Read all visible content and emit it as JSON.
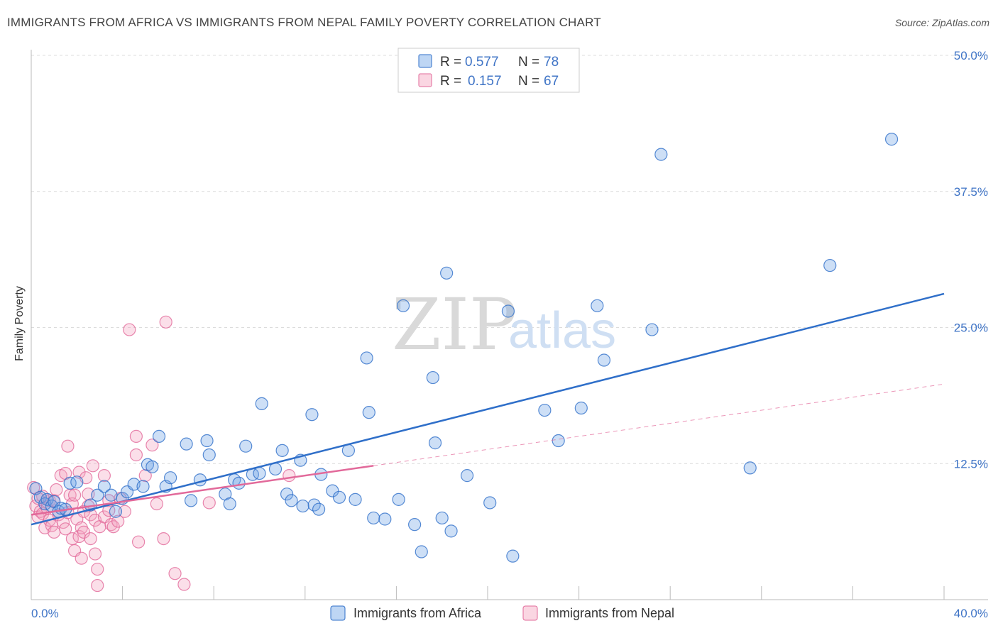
{
  "title": "IMMIGRANTS FROM AFRICA VS IMMIGRANTS FROM NEPAL FAMILY POVERTY CORRELATION CHART",
  "source": "Source: ZipAtlas.com",
  "watermark": {
    "zip": "ZIP",
    "atlas": "atlas"
  },
  "colors": {
    "africa": "#6fa3e6",
    "africa_line": "#2f6fc9",
    "nepal": "#f3a3bf",
    "nepal_line": "#e2699a",
    "tick": "#3f74c6"
  },
  "legend": {
    "rows": [
      {
        "series": "africa",
        "r_label": "R =",
        "r_value": "0.577",
        "n_label": "N =",
        "n_value": "78"
      },
      {
        "series": "nepal",
        "r_label": "R =",
        "r_value": "0.157",
        "n_label": "N =",
        "n_value": "67"
      }
    ]
  },
  "bottom_legend": [
    "Immigrants from Africa",
    "Immigrants from Nepal"
  ],
  "chart_data": {
    "type": "scatter",
    "title": "IMMIGRANTS FROM AFRICA VS IMMIGRANTS FROM NEPAL FAMILY POVERTY CORRELATION CHART",
    "xlabel": "",
    "ylabel": "Family Poverty",
    "xlim": [
      0,
      40
    ],
    "ylim": [
      0,
      50
    ],
    "x_tick_labels": [
      "0.0%",
      "40.0%"
    ],
    "y_ticks": [
      12.5,
      25.0,
      37.5,
      50.0
    ],
    "y_tick_labels": [
      "12.5%",
      "25.0%",
      "37.5%",
      "50.0%"
    ],
    "grid": true,
    "series": [
      {
        "name": "Immigrants from Africa",
        "color": "#6fa3e6",
        "r": 0.577,
        "n": 78,
        "trend": {
          "x": [
            0.0,
            40.0
          ],
          "y": [
            6.9,
            28.1
          ],
          "style": "solid"
        },
        "points": [
          [
            0.2,
            10.2
          ],
          [
            0.4,
            9.4
          ],
          [
            0.6,
            8.8
          ],
          [
            0.7,
            9.2
          ],
          [
            0.9,
            8.6
          ],
          [
            1.0,
            9.0
          ],
          [
            1.2,
            8.1
          ],
          [
            1.3,
            8.4
          ],
          [
            1.5,
            8.3
          ],
          [
            1.7,
            10.7
          ],
          [
            2.0,
            10.8
          ],
          [
            2.6,
            8.7
          ],
          [
            2.9,
            9.6
          ],
          [
            3.2,
            10.4
          ],
          [
            3.5,
            9.6
          ],
          [
            3.7,
            8.1
          ],
          [
            4.0,
            9.3
          ],
          [
            4.2,
            9.9
          ],
          [
            4.5,
            10.6
          ],
          [
            4.9,
            10.4
          ],
          [
            5.1,
            12.4
          ],
          [
            5.3,
            12.2
          ],
          [
            5.6,
            15.0
          ],
          [
            5.9,
            10.4
          ],
          [
            6.1,
            11.2
          ],
          [
            6.8,
            14.3
          ],
          [
            7.0,
            9.1
          ],
          [
            7.4,
            11.0
          ],
          [
            7.7,
            14.6
          ],
          [
            7.8,
            13.3
          ],
          [
            8.5,
            9.7
          ],
          [
            8.7,
            8.8
          ],
          [
            8.9,
            11.0
          ],
          [
            9.1,
            10.7
          ],
          [
            9.4,
            14.1
          ],
          [
            9.7,
            11.5
          ],
          [
            10.0,
            11.6
          ],
          [
            10.1,
            18.0
          ],
          [
            10.7,
            12.0
          ],
          [
            11.0,
            13.7
          ],
          [
            11.2,
            9.7
          ],
          [
            11.4,
            9.1
          ],
          [
            11.8,
            12.8
          ],
          [
            11.9,
            8.6
          ],
          [
            12.3,
            17.0
          ],
          [
            12.4,
            8.7
          ],
          [
            12.6,
            8.3
          ],
          [
            12.7,
            11.5
          ],
          [
            13.2,
            10.0
          ],
          [
            13.5,
            9.4
          ],
          [
            13.9,
            13.7
          ],
          [
            14.2,
            9.2
          ],
          [
            14.7,
            22.2
          ],
          [
            14.8,
            17.2
          ],
          [
            15.0,
            7.5
          ],
          [
            15.5,
            7.4
          ],
          [
            16.3,
            27.0
          ],
          [
            16.1,
            9.2
          ],
          [
            16.8,
            6.9
          ],
          [
            17.1,
            4.4
          ],
          [
            17.6,
            20.4
          ],
          [
            17.7,
            14.4
          ],
          [
            18.2,
            30.0
          ],
          [
            18.0,
            7.5
          ],
          [
            18.4,
            6.3
          ],
          [
            19.1,
            11.4
          ],
          [
            20.1,
            8.9
          ],
          [
            20.9,
            26.5
          ],
          [
            21.1,
            4.0
          ],
          [
            22.5,
            17.4
          ],
          [
            23.1,
            14.6
          ],
          [
            24.1,
            17.6
          ],
          [
            24.8,
            27.0
          ],
          [
            25.1,
            22.0
          ],
          [
            27.2,
            24.8
          ],
          [
            27.6,
            40.9
          ],
          [
            31.5,
            12.1
          ],
          [
            35.0,
            30.7
          ],
          [
            37.7,
            42.3
          ]
        ]
      },
      {
        "name": "Immigrants from Nepal",
        "color": "#f3a3bf",
        "r": 0.157,
        "n": 67,
        "trend": {
          "x": [
            0.0,
            15.0
          ],
          "y": [
            7.8,
            12.3
          ],
          "style": "solid",
          "dashed_extension": {
            "x": [
              15.0,
              40.0
            ],
            "y": [
              12.3,
              19.8
            ]
          }
        },
        "points": [
          [
            0.1,
            10.3
          ],
          [
            0.2,
            8.6
          ],
          [
            0.3,
            7.6
          ],
          [
            0.4,
            8.1
          ],
          [
            0.5,
            9.5
          ],
          [
            0.5,
            7.9
          ],
          [
            0.6,
            6.6
          ],
          [
            0.7,
            8.4
          ],
          [
            0.8,
            9.1
          ],
          [
            0.8,
            7.3
          ],
          [
            0.9,
            6.8
          ],
          [
            1.0,
            9.1
          ],
          [
            1.0,
            6.2
          ],
          [
            1.1,
            10.1
          ],
          [
            1.2,
            7.8
          ],
          [
            1.3,
            11.4
          ],
          [
            1.4,
            7.1
          ],
          [
            1.5,
            6.5
          ],
          [
            1.5,
            11.6
          ],
          [
            1.6,
            14.1
          ],
          [
            1.6,
            8.0
          ],
          [
            1.7,
            9.6
          ],
          [
            1.8,
            8.8
          ],
          [
            1.8,
            5.6
          ],
          [
            1.9,
            9.6
          ],
          [
            1.9,
            4.5
          ],
          [
            2.0,
            7.4
          ],
          [
            2.1,
            5.8
          ],
          [
            2.1,
            11.7
          ],
          [
            2.2,
            6.6
          ],
          [
            2.2,
            3.8
          ],
          [
            2.3,
            8.1
          ],
          [
            2.3,
            6.2
          ],
          [
            2.4,
            11.2
          ],
          [
            2.5,
            9.7
          ],
          [
            2.5,
            8.6
          ],
          [
            2.6,
            7.8
          ],
          [
            2.6,
            5.6
          ],
          [
            2.7,
            12.3
          ],
          [
            2.8,
            7.3
          ],
          [
            2.8,
            4.2
          ],
          [
            2.9,
            2.8
          ],
          [
            2.9,
            1.3
          ],
          [
            3.0,
            6.7
          ],
          [
            3.2,
            11.4
          ],
          [
            3.2,
            7.6
          ],
          [
            3.4,
            9.1
          ],
          [
            3.4,
            8.2
          ],
          [
            3.5,
            6.9
          ],
          [
            3.6,
            6.7
          ],
          [
            3.8,
            7.2
          ],
          [
            3.9,
            9.3
          ],
          [
            4.1,
            8.1
          ],
          [
            4.3,
            24.8
          ],
          [
            4.6,
            13.3
          ],
          [
            4.6,
            15.0
          ],
          [
            4.7,
            5.3
          ],
          [
            5.0,
            11.4
          ],
          [
            5.3,
            14.2
          ],
          [
            5.5,
            8.8
          ],
          [
            5.8,
            5.6
          ],
          [
            5.9,
            25.5
          ],
          [
            6.3,
            2.4
          ],
          [
            6.7,
            1.4
          ],
          [
            7.8,
            8.9
          ],
          [
            11.3,
            11.4
          ],
          [
            0.3,
            9.3
          ]
        ]
      }
    ]
  }
}
